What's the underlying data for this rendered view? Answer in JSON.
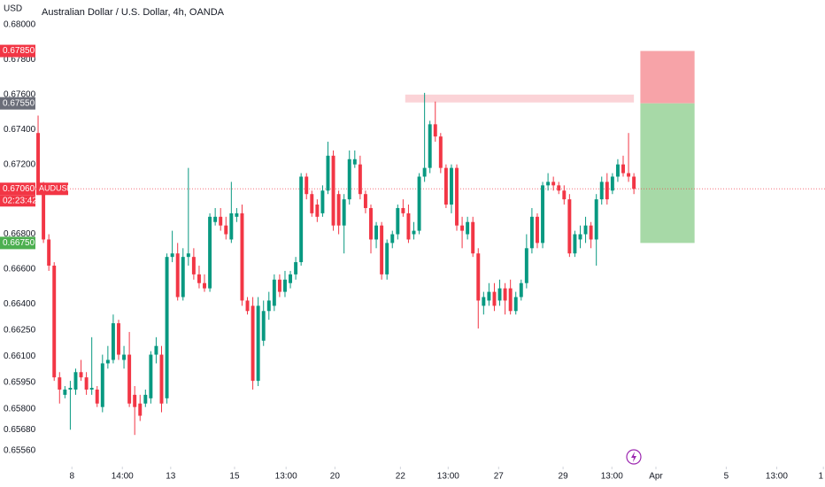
{
  "chart_data": {
    "type": "candlestick",
    "title": "Australian Dollar / U.S. Dollar, 4h, OANDA",
    "currency": "USD",
    "up_color": "#089981",
    "down_color": "#f23645",
    "candles": [
      [
        0.6738,
        0.6748,
        0.6705,
        0.6708
      ],
      [
        0.6708,
        0.671,
        0.6675,
        0.6677
      ],
      [
        0.6677,
        0.668,
        0.6659,
        0.6662
      ],
      [
        0.6662,
        0.6664,
        0.6596,
        0.6598
      ],
      [
        0.6598,
        0.6601,
        0.6583,
        0.6591
      ],
      [
        0.6588,
        0.6593,
        0.6586,
        0.6591
      ],
      [
        0.6591,
        0.6596,
        0.6568,
        0.6592
      ],
      [
        0.6591,
        0.6603,
        0.6588,
        0.6601
      ],
      [
        0.6601,
        0.6608,
        0.6596,
        0.6598
      ],
      [
        0.6598,
        0.6601,
        0.6588,
        0.6591
      ],
      [
        0.6591,
        0.6621,
        0.6588,
        0.6592
      ],
      [
        0.6591,
        0.6593,
        0.6581,
        0.6583
      ],
      [
        0.6581,
        0.6611,
        0.6578,
        0.6606
      ],
      [
        0.6606,
        0.6616,
        0.6603,
        0.6608
      ],
      [
        0.6608,
        0.6634,
        0.6606,
        0.6629
      ],
      [
        0.6629,
        0.6631,
        0.6608,
        0.6611
      ],
      [
        0.6608,
        0.6616,
        0.6603,
        0.6611
      ],
      [
        0.6611,
        0.6624,
        0.6581,
        0.6583
      ],
      [
        0.6588,
        0.6593,
        0.6565,
        0.6581
      ],
      [
        0.6583,
        0.6588,
        0.6573,
        0.6576
      ],
      [
        0.6583,
        0.6591,
        0.6581,
        0.6588
      ],
      [
        0.6586,
        0.6613,
        0.6583,
        0.6611
      ],
      [
        0.6611,
        0.6621,
        0.6606,
        0.6616
      ],
      [
        0.6611,
        0.6616,
        0.6578,
        0.6583
      ],
      [
        0.6586,
        0.6669,
        0.6583,
        0.6667
      ],
      [
        0.6667,
        0.6682,
        0.6664,
        0.6669
      ],
      [
        0.6669,
        0.6675,
        0.6642,
        0.6644
      ],
      [
        0.6644,
        0.6672,
        0.6642,
        0.6667
      ],
      [
        0.6667,
        0.6718,
        0.6662,
        0.6669
      ],
      [
        0.6667,
        0.6672,
        0.6654,
        0.6657
      ],
      [
        0.6657,
        0.6662,
        0.6649,
        0.6652
      ],
      [
        0.6652,
        0.6657,
        0.6647,
        0.6649
      ],
      [
        0.6649,
        0.6692,
        0.6647,
        0.669
      ],
      [
        0.6687,
        0.6695,
        0.6685,
        0.669
      ],
      [
        0.669,
        0.6695,
        0.6682,
        0.6685
      ],
      [
        0.6685,
        0.669,
        0.6677,
        0.668
      ],
      [
        0.6677,
        0.671,
        0.6675,
        0.6692
      ],
      [
        0.669,
        0.6695,
        0.6687,
        0.6692
      ],
      [
        0.6692,
        0.6697,
        0.6639,
        0.6642
      ],
      [
        0.6642,
        0.6644,
        0.6634,
        0.6636
      ],
      [
        0.6639,
        0.6644,
        0.6591,
        0.6596
      ],
      [
        0.6596,
        0.6644,
        0.6593,
        0.6639
      ],
      [
        0.6619,
        0.6642,
        0.6616,
        0.6636
      ],
      [
        0.6636,
        0.6647,
        0.6631,
        0.6642
      ],
      [
        0.6639,
        0.6657,
        0.6636,
        0.6654
      ],
      [
        0.6654,
        0.6657,
        0.6644,
        0.6647
      ],
      [
        0.6647,
        0.6659,
        0.6644,
        0.6654
      ],
      [
        0.6652,
        0.6659,
        0.6649,
        0.6657
      ],
      [
        0.6657,
        0.6667,
        0.6654,
        0.6664
      ],
      [
        0.6664,
        0.6715,
        0.6662,
        0.6713
      ],
      [
        0.6713,
        0.6715,
        0.67,
        0.6703
      ],
      [
        0.6703,
        0.6705,
        0.669,
        0.6692
      ],
      [
        0.6697,
        0.67,
        0.6687,
        0.669
      ],
      [
        0.6692,
        0.6708,
        0.669,
        0.6705
      ],
      [
        0.6705,
        0.6733,
        0.6703,
        0.6725
      ],
      [
        0.6725,
        0.6728,
        0.6682,
        0.6685
      ],
      [
        0.6703,
        0.6705,
        0.668,
        0.6685
      ],
      [
        0.6685,
        0.6703,
        0.6669,
        0.67
      ],
      [
        0.67,
        0.6728,
        0.6697,
        0.6723
      ],
      [
        0.672,
        0.6728,
        0.6718,
        0.6723
      ],
      [
        0.672,
        0.6725,
        0.67,
        0.6703
      ],
      [
        0.6703,
        0.6705,
        0.6692,
        0.6695
      ],
      [
        0.6695,
        0.6697,
        0.6669,
        0.6677
      ],
      [
        0.6677,
        0.6687,
        0.6672,
        0.6685
      ],
      [
        0.6685,
        0.6687,
        0.6654,
        0.6657
      ],
      [
        0.6657,
        0.6677,
        0.6654,
        0.6675
      ],
      [
        0.6675,
        0.6682,
        0.6672,
        0.668
      ],
      [
        0.668,
        0.6697,
        0.6677,
        0.6695
      ],
      [
        0.6695,
        0.67,
        0.669,
        0.6692
      ],
      [
        0.6692,
        0.6697,
        0.6675,
        0.6677
      ],
      [
        0.668,
        0.6687,
        0.6677,
        0.6682
      ],
      [
        0.6682,
        0.6715,
        0.668,
        0.6713
      ],
      [
        0.6713,
        0.6761,
        0.671,
        0.6718
      ],
      [
        0.6718,
        0.6745,
        0.6715,
        0.6743
      ],
      [
        0.6743,
        0.6756,
        0.6733,
        0.6736
      ],
      [
        0.6736,
        0.6738,
        0.6715,
        0.6718
      ],
      [
        0.6718,
        0.672,
        0.6695,
        0.6697
      ],
      [
        0.6697,
        0.672,
        0.6692,
        0.6718
      ],
      [
        0.6718,
        0.672,
        0.6682,
        0.6685
      ],
      [
        0.6685,
        0.669,
        0.6672,
        0.6682
      ],
      [
        0.668,
        0.669,
        0.6677,
        0.6687
      ],
      [
        0.6687,
        0.669,
        0.6667,
        0.6669
      ],
      [
        0.6669,
        0.6672,
        0.6626,
        0.6642
      ],
      [
        0.6639,
        0.6647,
        0.6634,
        0.6644
      ],
      [
        0.6642,
        0.6652,
        0.6639,
        0.6647
      ],
      [
        0.6647,
        0.6652,
        0.6636,
        0.6639
      ],
      [
        0.6642,
        0.6654,
        0.6639,
        0.6649
      ],
      [
        0.6649,
        0.6652,
        0.6634,
        0.6642
      ],
      [
        0.6649,
        0.6654,
        0.6634,
        0.6636
      ],
      [
        0.6636,
        0.6647,
        0.6634,
        0.6644
      ],
      [
        0.6644,
        0.6654,
        0.6642,
        0.6652
      ],
      [
        0.6652,
        0.668,
        0.6649,
        0.6672
      ],
      [
        0.6672,
        0.6695,
        0.6669,
        0.669
      ],
      [
        0.669,
        0.6692,
        0.6672,
        0.6675
      ],
      [
        0.6675,
        0.671,
        0.6672,
        0.6708
      ],
      [
        0.6708,
        0.6715,
        0.6705,
        0.671
      ],
      [
        0.671,
        0.6713,
        0.6705,
        0.6708
      ],
      [
        0.6708,
        0.671,
        0.6703,
        0.6705
      ],
      [
        0.6705,
        0.6708,
        0.6697,
        0.67
      ],
      [
        0.67,
        0.6703,
        0.6667,
        0.6669
      ],
      [
        0.6669,
        0.6682,
        0.6667,
        0.668
      ],
      [
        0.6677,
        0.6685,
        0.6672,
        0.668
      ],
      [
        0.668,
        0.669,
        0.6675,
        0.6685
      ],
      [
        0.6685,
        0.6687,
        0.6672,
        0.6677
      ],
      [
        0.6677,
        0.6703,
        0.6662,
        0.67
      ],
      [
        0.67,
        0.6713,
        0.6697,
        0.671
      ],
      [
        0.671,
        0.6715,
        0.6697,
        0.67
      ],
      [
        0.6705,
        0.6715,
        0.6703,
        0.6713
      ],
      [
        0.6713,
        0.6723,
        0.671,
        0.672
      ],
      [
        0.672,
        0.6725,
        0.6713,
        0.6715
      ],
      [
        0.6715,
        0.6738,
        0.671,
        0.6713
      ],
      [
        0.6713,
        0.6715,
        0.6703,
        0.6706
      ]
    ],
    "xlim": [
      -0.5,
      146.6
    ],
    "xticks": [
      {
        "value": 6.3,
        "label": "8"
      },
      {
        "value": 15.7,
        "label": "14:00"
      },
      {
        "value": 24.7,
        "label": "13"
      },
      {
        "value": 36.6,
        "label": "15"
      },
      {
        "value": 46.2,
        "label": "13:00"
      },
      {
        "value": 55.3,
        "label": "20"
      },
      {
        "value": 67.5,
        "label": "22"
      },
      {
        "value": 76.4,
        "label": "13:00"
      },
      {
        "value": 85.8,
        "label": "27"
      },
      {
        "value": 97.8,
        "label": "29"
      },
      {
        "value": 106.9,
        "label": "13:00"
      },
      {
        "value": 115.1,
        "label": "Apr"
      },
      {
        "value": 128.2,
        "label": "5"
      },
      {
        "value": 137.6,
        "label": "13:00"
      },
      {
        "value": 146.3,
        "label": "1"
      }
    ],
    "ylim": [
      0.65504,
      0.68142
    ],
    "yticks": [
      {
        "value": 0.68,
        "label": "0.68000"
      },
      {
        "value": 0.678,
        "label": "0.67800"
      },
      {
        "value": 0.676,
        "label": "0.67600"
      },
      {
        "value": 0.674,
        "label": "0.67400"
      },
      {
        "value": 0.672,
        "label": "0.67200"
      },
      {
        "value": 0.668,
        "label": "0.66800"
      },
      {
        "value": 0.666,
        "label": "0.66600"
      },
      {
        "value": 0.664,
        "label": "0.66400"
      },
      {
        "value": 0.6625,
        "label": "0.66250"
      },
      {
        "value": 0.661,
        "label": "0.66100"
      },
      {
        "value": 0.6595,
        "label": "0.65950"
      },
      {
        "value": 0.658,
        "label": "0.65800"
      },
      {
        "value": 0.6568,
        "label": "0.65680"
      },
      {
        "value": 0.6556,
        "label": "0.65560"
      }
    ],
    "zone": {
      "start": 68.4,
      "end": 111,
      "top": 0.676,
      "bottom": 0.67555,
      "color": "#fbd3d7"
    },
    "position": {
      "start": 112.2,
      "end": 122.3,
      "stop": {
        "value": 0.6785,
        "label": "0.67850"
      },
      "entry": {
        "value": 0.6755,
        "label": "0.67550"
      },
      "target": {
        "value": 0.6675,
        "label": "0.66750"
      },
      "stop_color": "#f7a3a8",
      "target_color": "#a7d9a7",
      "entry_label_color": "#6a6d78",
      "target_label_color": "#4caf50"
    },
    "last_price": {
      "value": 0.6706,
      "label": "0.67060",
      "symbol": "AUDUSD",
      "countdown": "02:23:42"
    }
  }
}
